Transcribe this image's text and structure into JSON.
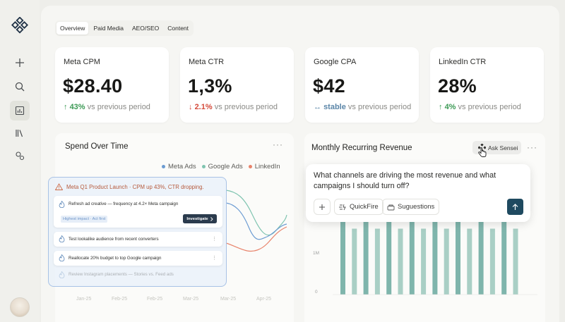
{
  "sidebar": {
    "logo_icon": "diamond-grid-icon",
    "items": [
      {
        "icon": "plus-icon"
      },
      {
        "icon": "search-icon"
      },
      {
        "icon": "bar-chart-icon",
        "active": true
      },
      {
        "icon": "library-icon"
      },
      {
        "icon": "connections-icon"
      }
    ]
  },
  "tabs": [
    {
      "label": "Overview",
      "active": true
    },
    {
      "label": "Paid Media"
    },
    {
      "label": "AEO/SEO"
    },
    {
      "label": "Content"
    }
  ],
  "metrics": [
    {
      "label": "Meta CPM",
      "value": "$28.40",
      "arrow": "↑",
      "delta": "43%",
      "suffix": "vs previous period",
      "trend": "up"
    },
    {
      "label": "Meta CTR",
      "value": "1,3%",
      "arrow": "↓",
      "delta": "2.1%",
      "suffix": "vs previous period",
      "trend": "down"
    },
    {
      "label": "Google CPA",
      "value": "$42",
      "arrow": "↔",
      "delta": "stable",
      "suffix": "vs previous period",
      "trend": "flat"
    },
    {
      "label": "LinkedIn CTR",
      "value": "28%",
      "arrow": "↑",
      "delta": "4%",
      "suffix": "vs previous period",
      "trend": "up"
    }
  ],
  "spend_panel": {
    "title": "Spend Over Time",
    "menu": "···",
    "legend": [
      {
        "name": "Meta Ads",
        "color": "#6b9bd2"
      },
      {
        "name": "Google Ads",
        "color": "#7fc4b0"
      },
      {
        "name": "LinkedIn",
        "color": "#e8836b"
      }
    ],
    "x_labels": [
      "Jan-25",
      "Feb-25",
      "Feb-25",
      "Mar-25",
      "Mar-25",
      "Apr-25"
    ]
  },
  "notification": {
    "alert_icon": "warning-icon",
    "alert": "Meta Q1 Product Launch · CPM up 43%, CTR dropping.",
    "items": [
      {
        "icon": "flame-icon",
        "text": "Refresh ad creative — frequency at 4.2× Meta campaign",
        "tag": "Highest impact · Act first",
        "action": "Investigate",
        "action_icon": "chevron-right-icon",
        "menu": "⋮"
      },
      {
        "icon": "flame-icon",
        "text": "Test lookalike audience from recent converters",
        "menu": "⋮"
      },
      {
        "icon": "flame-icon",
        "text": "Reallocate 20% budget to top Google campaign",
        "menu": "⋮"
      },
      {
        "icon": "flame-icon",
        "text": "Review Instagram placements — Stories vs. Feed ads"
      }
    ]
  },
  "mrr_panel": {
    "title": "Monthly Recurring Revenue",
    "menu": "···",
    "ask_label": "Ask Sensei",
    "ask_icon": "sensei-icon",
    "y_labels": [
      "1M",
      "0"
    ],
    "question": "What channels are driving the most revenue and what campaigns I should turn off?",
    "buttons": [
      {
        "label": "",
        "icon": "plus-icon"
      },
      {
        "label": "QuickFire",
        "icon": "quickfire-icon"
      },
      {
        "label": "Suguestions",
        "icon": "suggestions-icon"
      }
    ],
    "send_icon": "arrow-up-icon"
  },
  "chart_data": {
    "type": "bar",
    "title": "Monthly Recurring Revenue",
    "ylabel": "",
    "ylim": [
      0,
      1500000
    ],
    "series": [
      {
        "values": [
          1400000,
          1150000,
          1400000,
          1150000,
          1400000,
          1150000,
          1400000,
          1150000,
          1400000,
          1150000,
          1400000,
          1150000,
          1400000,
          1150000,
          1400000,
          1150000
        ]
      }
    ]
  },
  "colors": {
    "bar_light": "#a9cfc5",
    "bar_dark": "#7fb5ac",
    "accent": "#1f4a60"
  }
}
